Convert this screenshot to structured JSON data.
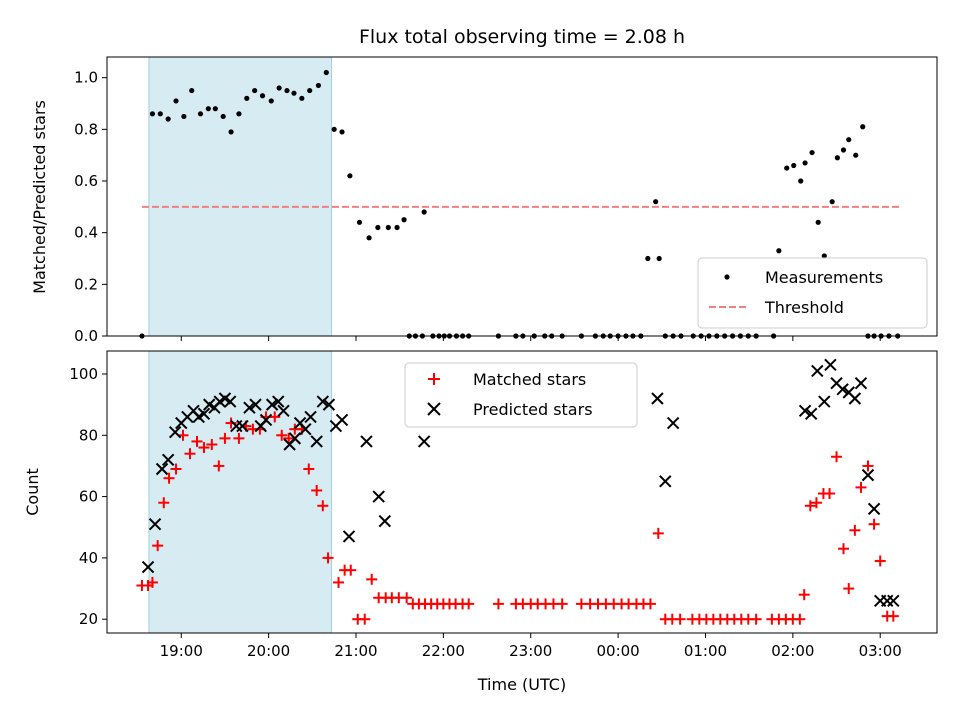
{
  "chart_data": {
    "title": "Flux total observing time = 2.08 h",
    "xlabel": "Time (UTC)",
    "x_unit": "hours",
    "x_ticks": [
      {
        "value": 19,
        "label": "19:00"
      },
      {
        "value": 20,
        "label": "20:00"
      },
      {
        "value": 21,
        "label": "21:00"
      },
      {
        "value": 22,
        "label": "22:00"
      },
      {
        "value": 23,
        "label": "23:00"
      },
      {
        "value": 24,
        "label": "00:00"
      },
      {
        "value": 25,
        "label": "01:00"
      },
      {
        "value": 26,
        "label": "02:00"
      },
      {
        "value": 27,
        "label": "03:00"
      }
    ],
    "xlim": [
      18.15,
      27.65
    ],
    "highlight_span": [
      18.63,
      20.72
    ],
    "top": {
      "ylabel": "Matched/Predicted stars",
      "ylim": [
        0.0,
        1.08
      ],
      "y_ticks": [
        {
          "value": 0.0,
          "label": "0.0"
        },
        {
          "value": 0.2,
          "label": "0.2"
        },
        {
          "value": 0.4,
          "label": "0.4"
        },
        {
          "value": 0.6,
          "label": "0.6"
        },
        {
          "value": 0.8,
          "label": "0.8"
        },
        {
          "value": 1.0,
          "label": "1.0"
        }
      ],
      "threshold": {
        "name": "Threshold",
        "value": 0.5,
        "x_range": [
          18.55,
          27.22
        ],
        "color": "#f08080"
      },
      "legend": {
        "placement": "lower-right",
        "entries": [
          "Measurements",
          "Threshold"
        ]
      },
      "series": [
        {
          "name": "Measurements",
          "type": "scatter",
          "color": "#000000",
          "x": [
            18.55,
            18.67,
            18.76,
            18.85,
            18.94,
            19.03,
            19.12,
            19.22,
            19.31,
            19.39,
            19.48,
            19.57,
            19.66,
            19.75,
            19.84,
            19.93,
            20.03,
            20.12,
            20.21,
            20.29,
            20.38,
            20.47,
            20.57,
            20.66,
            20.75,
            20.84,
            20.93,
            21.04,
            21.15,
            21.25,
            21.37,
            21.47,
            21.55,
            21.61,
            21.68,
            21.76,
            21.78,
            21.88,
            21.95,
            22.01,
            22.07,
            22.15,
            22.22,
            22.29,
            22.63,
            22.83,
            22.91,
            23.04,
            23.16,
            23.24,
            23.36,
            23.58,
            23.74,
            23.83,
            23.91,
            24.0,
            24.09,
            24.17,
            24.26,
            24.34,
            24.43,
            24.47,
            24.54,
            24.63,
            24.72,
            24.86,
            24.95,
            25.04,
            25.13,
            25.22,
            25.31,
            25.4,
            25.49,
            25.58,
            25.78,
            25.84,
            25.93,
            26.01,
            26.09,
            26.14,
            26.22,
            26.29,
            26.36,
            26.45,
            26.51,
            26.58,
            26.64,
            26.72,
            26.8,
            26.86,
            26.93,
            27.01,
            27.1,
            27.2
          ],
          "y": [
            0.0,
            0.86,
            0.86,
            0.84,
            0.91,
            0.85,
            0.95,
            0.86,
            0.88,
            0.88,
            0.85,
            0.79,
            0.86,
            0.92,
            0.95,
            0.93,
            0.91,
            0.96,
            0.95,
            0.94,
            0.92,
            0.95,
            0.97,
            1.02,
            0.8,
            0.79,
            0.62,
            0.44,
            0.38,
            0.42,
            0.42,
            0.42,
            0.45,
            0.0,
            0.0,
            0.0,
            0.48,
            0.0,
            0.0,
            0.0,
            0.0,
            0.0,
            0.0,
            0.0,
            0.0,
            0.0,
            0.0,
            0.0,
            0.0,
            0.0,
            0.0,
            0.0,
            0.0,
            0.0,
            0.0,
            0.0,
            0.0,
            0.0,
            0.0,
            0.3,
            0.52,
            0.3,
            0.0,
            0.0,
            0.0,
            0.0,
            0.0,
            0.0,
            0.0,
            0.0,
            0.0,
            0.0,
            0.0,
            0.0,
            0.0,
            0.33,
            0.65,
            0.66,
            0.6,
            0.67,
            0.71,
            0.44,
            0.31,
            0.52,
            0.69,
            0.72,
            0.76,
            0.7,
            0.81,
            0.0,
            0.0,
            0.0,
            0.0,
            0.0
          ]
        }
      ]
    },
    "bottom": {
      "ylabel": "Count",
      "ylim": [
        15.5,
        107.5
      ],
      "y_ticks": [
        {
          "value": 20,
          "label": "20"
        },
        {
          "value": 40,
          "label": "40"
        },
        {
          "value": 60,
          "label": "60"
        },
        {
          "value": 80,
          "label": "80"
        },
        {
          "value": 100,
          "label": "100"
        }
      ],
      "legend": {
        "placement": "upper-center",
        "entries": [
          "Matched stars",
          "Predicted stars"
        ]
      },
      "series": [
        {
          "name": "Matched stars",
          "type": "scatter",
          "marker": "plus",
          "color": "#ff0000",
          "x": [
            18.55,
            18.62,
            18.67,
            18.73,
            18.8,
            18.86,
            18.94,
            19.02,
            19.1,
            19.18,
            19.26,
            19.35,
            19.43,
            19.5,
            19.57,
            19.66,
            19.74,
            19.82,
            19.9,
            19.97,
            20.07,
            20.15,
            20.23,
            20.3,
            20.38,
            20.46,
            20.55,
            20.62,
            20.68,
            20.8,
            20.87,
            20.94,
            21.02,
            21.1,
            21.18,
            21.26,
            21.34,
            21.41,
            21.49,
            21.58,
            21.65,
            21.72,
            21.79,
            21.86,
            21.93,
            22.0,
            22.07,
            22.14,
            22.22,
            22.29,
            22.63,
            22.83,
            22.91,
            23.0,
            23.08,
            23.17,
            23.26,
            23.36,
            23.58,
            23.68,
            23.77,
            23.86,
            23.95,
            24.04,
            24.12,
            24.21,
            24.29,
            24.37,
            24.46,
            24.54,
            24.62,
            24.71,
            24.85,
            24.93,
            25.01,
            25.09,
            25.17,
            25.25,
            25.33,
            25.41,
            25.49,
            25.58,
            25.76,
            25.84,
            25.92,
            26.0,
            26.08,
            26.13,
            26.2,
            26.27,
            26.35,
            26.42,
            26.5,
            26.58,
            26.64,
            26.71,
            26.78,
            26.86,
            26.93,
            27.0,
            27.08,
            27.15
          ],
          "y": [
            31,
            31,
            32,
            44,
            58,
            66,
            69,
            80,
            74,
            78,
            76,
            77,
            70,
            79,
            84,
            79,
            83,
            82,
            82,
            86,
            86,
            80,
            79,
            82,
            82,
            69,
            62,
            57,
            40,
            32,
            36,
            36,
            20,
            20,
            33,
            27,
            27,
            27,
            27,
            27,
            25,
            25,
            25,
            25,
            25,
            25,
            25,
            25,
            25,
            25,
            25,
            25,
            25,
            25,
            25,
            25,
            25,
            25,
            25,
            25,
            25,
            25,
            25,
            25,
            25,
            25,
            25,
            25,
            48,
            20,
            20,
            20,
            20,
            20,
            20,
            20,
            20,
            20,
            20,
            20,
            20,
            20,
            20,
            20,
            20,
            20,
            20,
            28,
            57,
            58,
            61,
            61,
            73,
            43,
            30,
            49,
            63,
            70,
            51,
            39,
            21,
            21
          ]
        },
        {
          "name": "Predicted stars",
          "type": "scatter",
          "marker": "x",
          "color": "#000000",
          "x": [
            18.62,
            18.7,
            18.78,
            18.85,
            18.93,
            19.0,
            19.07,
            19.14,
            19.2,
            19.26,
            19.32,
            19.38,
            19.44,
            19.5,
            19.56,
            19.63,
            19.7,
            19.78,
            19.85,
            19.91,
            19.97,
            20.04,
            20.11,
            20.17,
            20.24,
            20.3,
            20.36,
            20.42,
            20.48,
            20.55,
            20.62,
            20.69,
            20.77,
            20.84,
            20.92,
            21.12,
            21.26,
            21.33,
            21.78,
            24.45,
            24.54,
            24.63,
            26.14,
            26.21,
            26.28,
            26.36,
            26.43,
            26.5,
            26.57,
            26.64,
            26.71,
            26.78,
            26.86,
            26.93,
            27.0,
            27.08,
            27.15
          ],
          "y": [
            37,
            51,
            69,
            72,
            81,
            84,
            86,
            88,
            86,
            87,
            90,
            89,
            91,
            92,
            91,
            83,
            83,
            89,
            90,
            83,
            85,
            90,
            91,
            88,
            77,
            79,
            84,
            82,
            86,
            78,
            91,
            90,
            83,
            85,
            47,
            78,
            60,
            52,
            78,
            92,
            65,
            84,
            88,
            87,
            101,
            91,
            103,
            97,
            95,
            94,
            92,
            97,
            67,
            56,
            26,
            26,
            26
          ]
        }
      ]
    }
  }
}
